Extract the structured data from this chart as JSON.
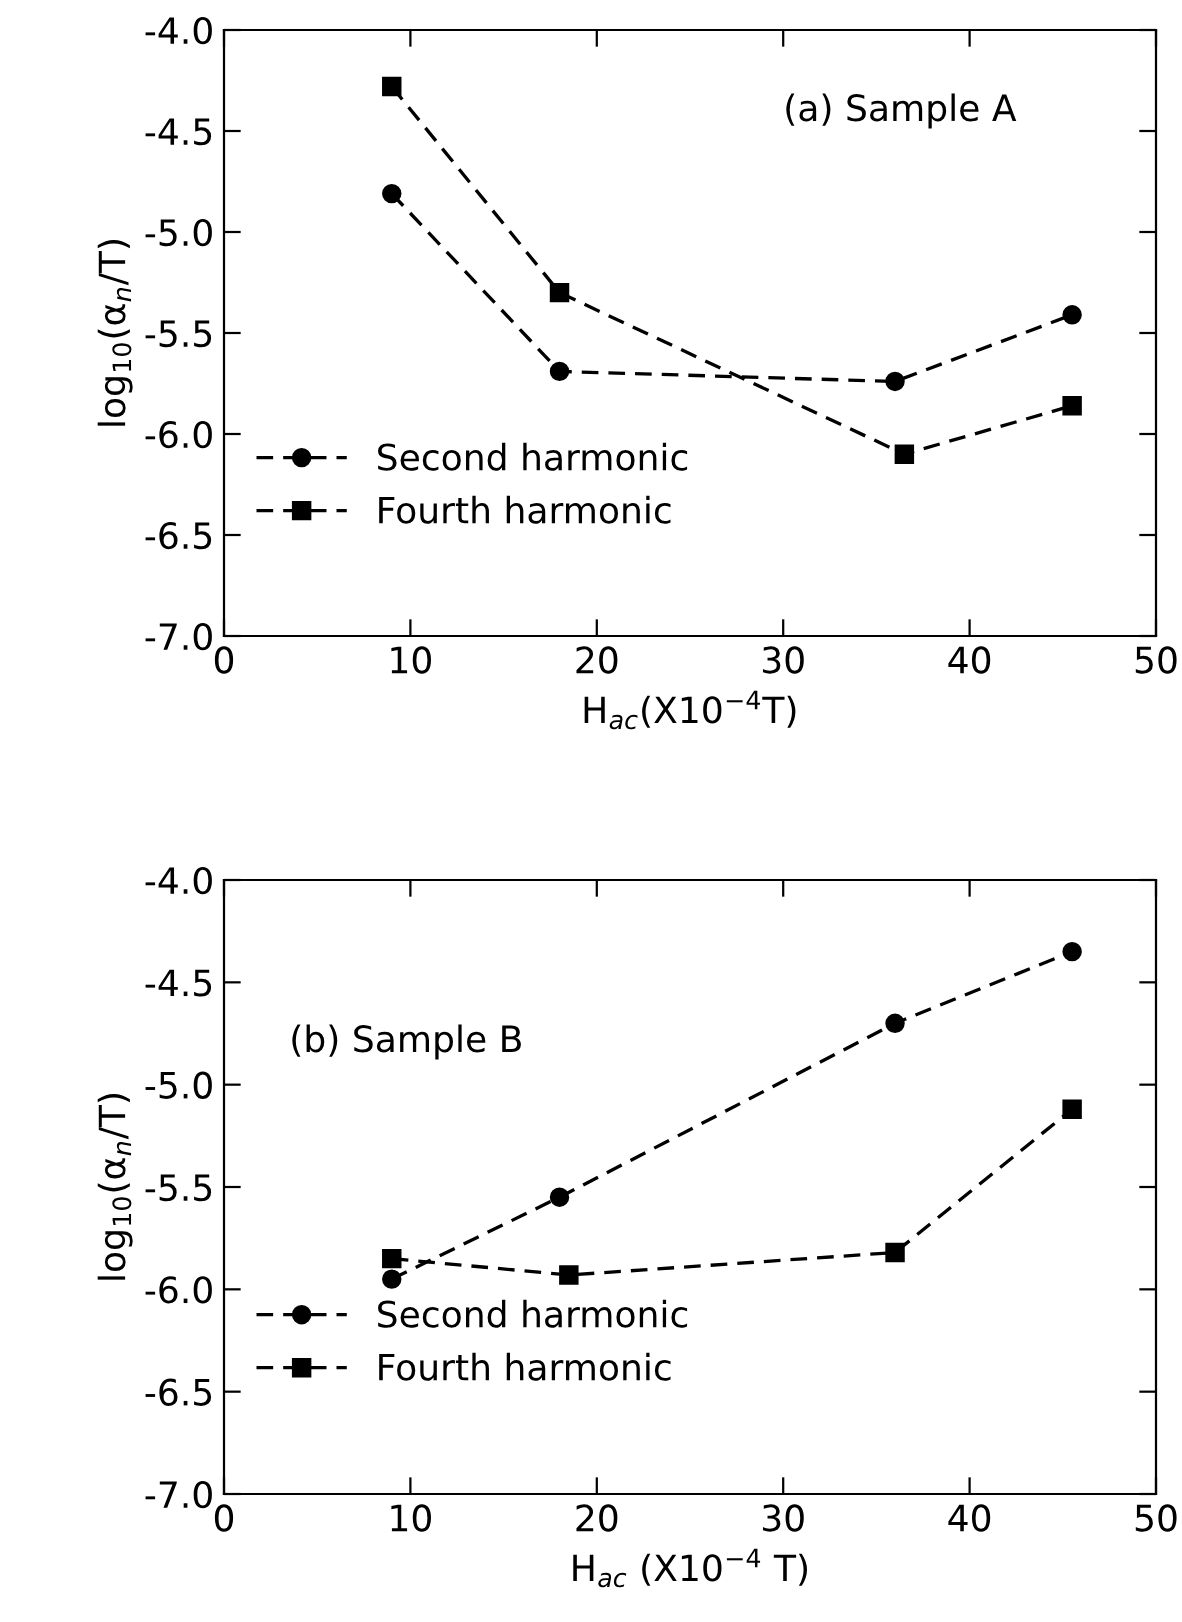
{
  "chart_data": [
    {
      "type": "line",
      "xlabel": "H$_{ac}$(X10$^{−4}$T)",
      "ylabel": "log$_{10}$(α$_{n}$/T)",
      "annotations": [
        "(a) Sample A"
      ],
      "xlim": [
        0,
        50
      ],
      "xticks": [
        0,
        10,
        20,
        30,
        40,
        50
      ],
      "ylim": [
        -7,
        -4
      ],
      "yticks": [
        {
          "value": -7,
          "label": "-7.0"
        },
        {
          "value": -6.5,
          "label": "-6.5"
        },
        {
          "value": -6,
          "label": "-6.0"
        },
        {
          "value": -5.5,
          "label": "-5.5"
        },
        {
          "value": -5,
          "label": "-5.0"
        },
        {
          "value": -4.5,
          "label": "-4.5"
        },
        {
          "value": -4,
          "label": "-4.0"
        }
      ],
      "grid": false,
      "legend": "lower left",
      "line_style": "dashed",
      "series": [
        {
          "name": "Second harmonic",
          "color": "#000000",
          "marker": "circle",
          "x": [
            9,
            18,
            36,
            45.5
          ],
          "values": [
            -4.81,
            -5.69,
            -5.74,
            -5.41
          ]
        },
        {
          "name": "Fourth harmonic",
          "color": "#000000",
          "marker": "square",
          "x": [
            9,
            18,
            36.5,
            45.5
          ],
          "values": [
            -4.28,
            -5.3,
            -6.1,
            -5.86
          ]
        }
      ]
    },
    {
      "type": "line",
      "xlabel": "H$_{ac}$ (X10$^{−4}$ T)",
      "ylabel": "log$_{10}$(α$_{n}$/T)",
      "annotations": [
        "(b) Sample B"
      ],
      "xlim": [
        0,
        50
      ],
      "xticks": [
        0,
        10,
        20,
        30,
        40,
        50
      ],
      "ylim": [
        -7,
        -4
      ],
      "yticks": [
        {
          "value": -7,
          "label": "-7.0"
        },
        {
          "value": -6.5,
          "label": "-6.5"
        },
        {
          "value": -6,
          "label": "-6.0"
        },
        {
          "value": -5.5,
          "label": "-5.5"
        },
        {
          "value": -5,
          "label": "-5.0"
        },
        {
          "value": -4.5,
          "label": "-4.5"
        },
        {
          "value": -4,
          "label": "-4.0"
        }
      ],
      "grid": false,
      "legend": "lower left",
      "line_style": "dashed",
      "series": [
        {
          "name": "Second harmonic",
          "color": "#000000",
          "marker": "circle",
          "x": [
            9,
            18,
            36,
            45.5
          ],
          "values": [
            -5.95,
            -5.55,
            -4.7,
            -4.35
          ]
        },
        {
          "name": "Fourth harmonic",
          "color": "#000000",
          "marker": "square",
          "x": [
            9,
            18.5,
            36,
            45.5
          ],
          "values": [
            -5.85,
            -5.93,
            -5.82,
            -5.12
          ]
        }
      ]
    }
  ]
}
